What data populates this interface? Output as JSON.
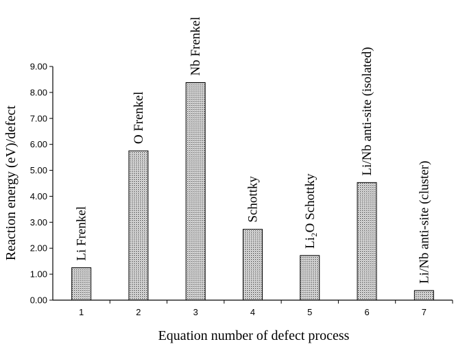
{
  "chart_data": {
    "type": "bar",
    "categories": [
      "1",
      "2",
      "3",
      "4",
      "5",
      "6",
      "7"
    ],
    "values": [
      1.25,
      5.75,
      8.38,
      2.73,
      1.72,
      4.53,
      0.37
    ],
    "bar_labels": [
      "Li Frenkel",
      "O Frenkel",
      "Nb Frenkel",
      "Schottky",
      "Li₂O Schottky",
      "Li/Nb anti-site (isolated)",
      "Li/Nb anti-site (cluster)"
    ],
    "y_ticks": [
      "0.00",
      "1.00",
      "2.00",
      "3.00",
      "4.00",
      "5.00",
      "6.00",
      "7.00",
      "8.00",
      "9.00"
    ],
    "xlabel": "Equation number of  defect process",
    "ylabel": "Reaction energy (eV)/defect",
    "ylim": [
      0,
      9
    ],
    "grid": false,
    "legend": "none",
    "bar_fill": "crosshatch",
    "colors": {
      "bar_dots": "#5a5a5a",
      "bar_edge": "#000000",
      "axis": "#000000"
    }
  }
}
